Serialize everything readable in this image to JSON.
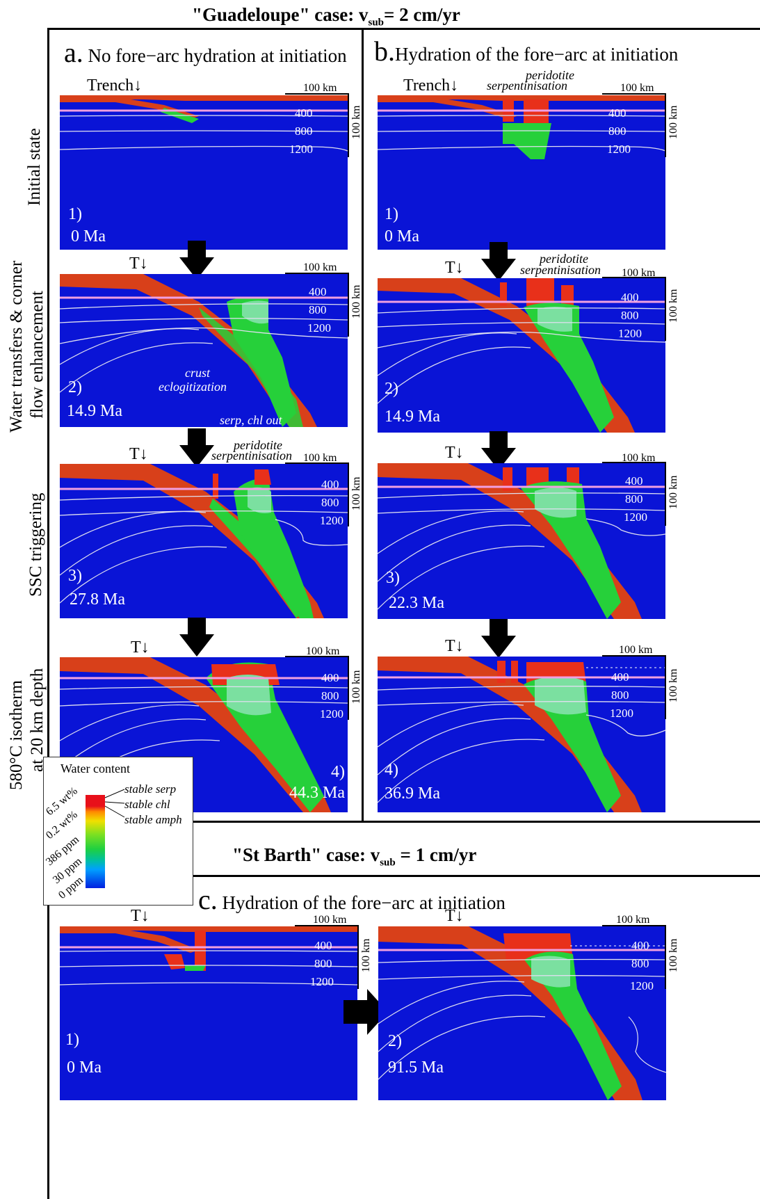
{
  "header": {
    "top_title_prefix": "\"Guadeloupe\" case: v",
    "top_title_sub": "sub",
    "top_title_suffix": "= 2 cm/yr",
    "mid_title_prefix": "\"St Barth\" case: v",
    "mid_title_sub": "sub",
    "mid_title_suffix": " = 1 cm/yr"
  },
  "columns": {
    "a": {
      "letter": "a.",
      "text": "No fore−arc hydration at initiation"
    },
    "b": {
      "letter": "b.",
      "text": "Hydration of the fore−arc at initiation"
    },
    "c": {
      "letter": "c.",
      "text": "Hydration of the fore−arc at initiation"
    }
  },
  "row_labels": {
    "r1": "Initial state",
    "r2a": "Water transfers & corner",
    "r2b": "flow enhancement",
    "r3": "SSC triggering",
    "r4a": "580°C isotherm",
    "r4b": "at 20 km depth"
  },
  "common": {
    "trench_full": "Trench↓",
    "trench_short": "T↓",
    "scale_h": "100 km",
    "scale_v": "100 km",
    "iso_400": "400",
    "iso_800": "800",
    "iso_1200": "1200"
  },
  "panels": {
    "a1": {
      "num": "1)",
      "age": "0 Ma"
    },
    "a2": {
      "num": "2)",
      "age": "14.9 Ma"
    },
    "a3": {
      "num": "3)",
      "age": "27.8 Ma"
    },
    "a4": {
      "num": "4)",
      "age": "44.3 Ma"
    },
    "b1": {
      "num": "1)",
      "age": "0 Ma"
    },
    "b2": {
      "num": "2)",
      "age": "14.9 Ma"
    },
    "b3": {
      "num": "3)",
      "age": "22.3 Ma"
    },
    "b4": {
      "num": "4)",
      "age": "36.9 Ma"
    },
    "c1": {
      "num": "1)",
      "age": "0 Ma"
    },
    "c2": {
      "num": "2)",
      "age": "91.5 Ma"
    }
  },
  "annotations": {
    "peridotite": "peridotite",
    "serpentinisation": "serpentinisation",
    "crust": "crust",
    "eclogitization": "eclogitization",
    "serp_chl_out": "serp, chl out"
  },
  "legend": {
    "title": "Water content",
    "ticks": [
      "6.5 wt%",
      "0.2 wt%",
      "386 ppm",
      "30 ppm",
      "0 ppm"
    ],
    "labels": [
      "stable serp",
      "stable chl",
      "stable amph"
    ]
  },
  "colors": {
    "background_blue": "#0a14d6",
    "plate_red": "#d8401a",
    "hydrated_green": "#26d03a",
    "serp_red": "#e8301a",
    "isotherm": "#e0e0f0",
    "isotherm_pink": "#f0a0e0"
  }
}
